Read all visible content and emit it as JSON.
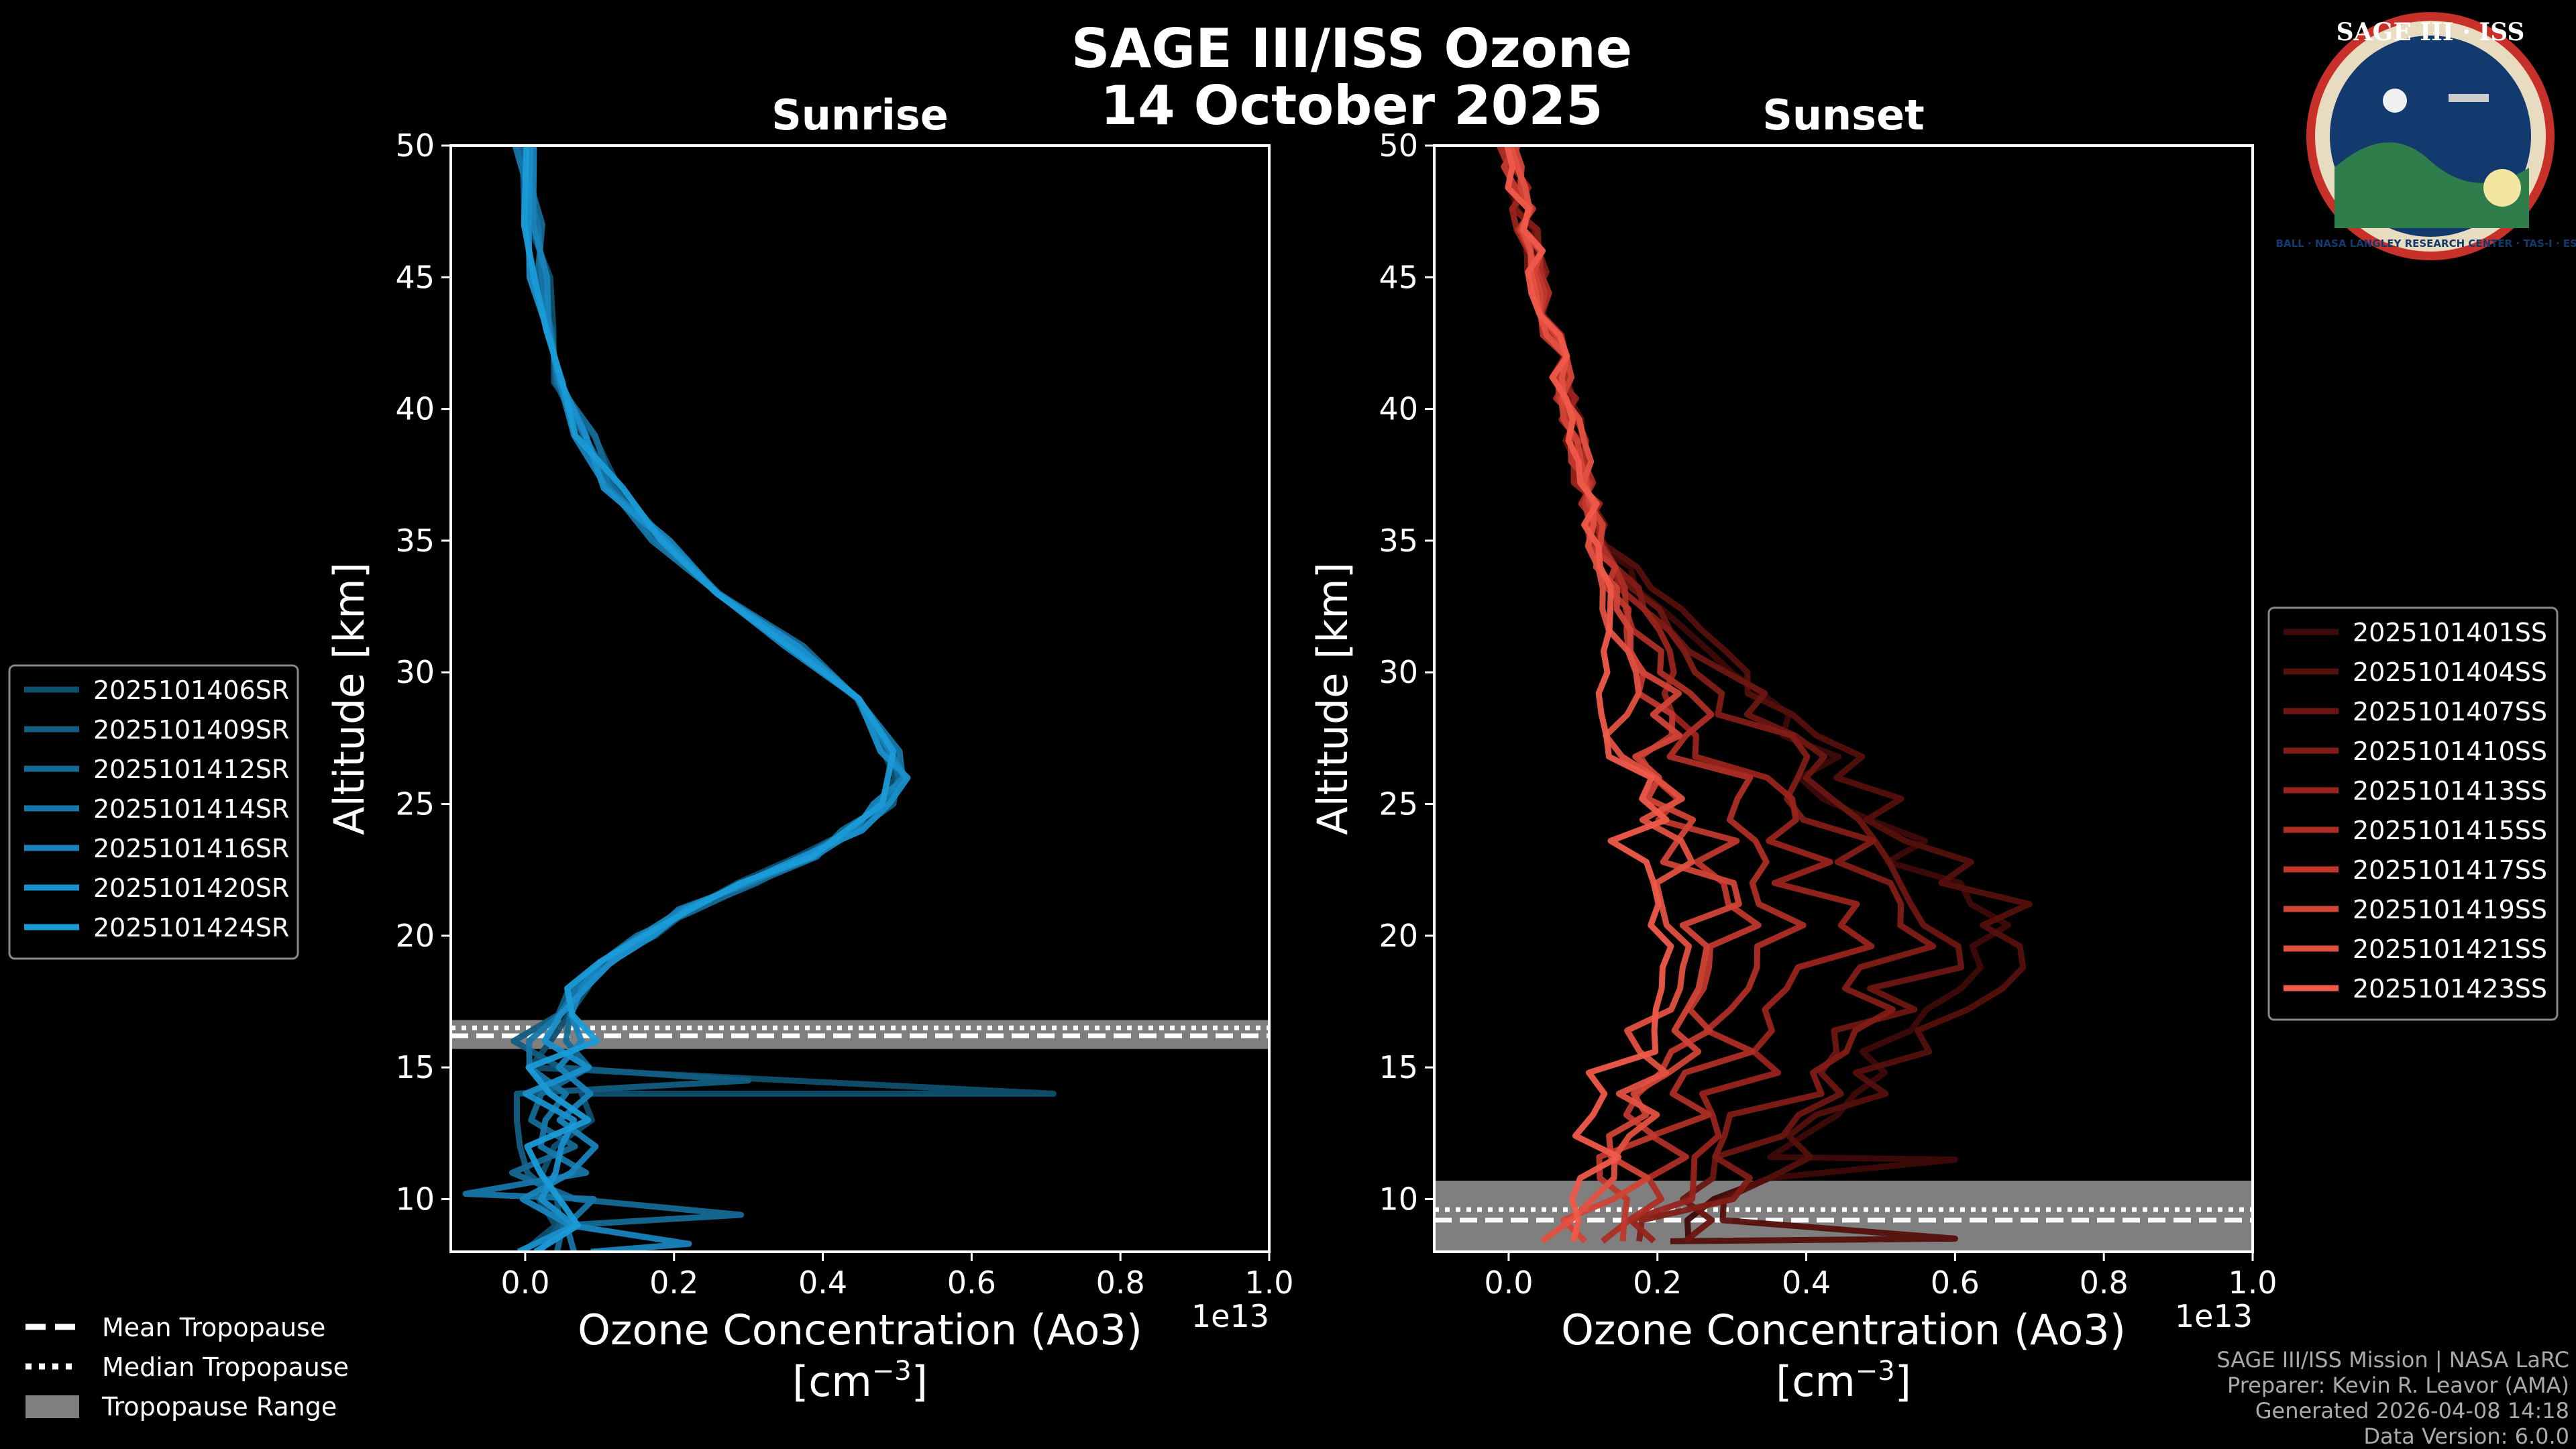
{
  "title_line1": "SAGE III/ISS Ozone",
  "title_line2": "14 October 2025",
  "logo": {
    "text": "SAGE III · ISS",
    "ring_text": "BALL · NASA LANGLEY RESEARCH CENTER · TAS-I · ESA"
  },
  "colors": {
    "sunrise": "#1a9bd7",
    "sunset": "#f05a4a",
    "grid_bg": "#000000",
    "tropo_band": "#7f7f7f"
  },
  "chart_data": [
    {
      "type": "line",
      "title": "Sunrise",
      "xlabel": "Ozone Concentration (Ao3)",
      "xlabel_unit": "[cm",
      "xlabel_unit_exp": "−3",
      "xlabel_unit_close": "]",
      "ylabel": "Altitude [km]",
      "offset_label": "1e13",
      "xlim": [
        -0.1,
        1.0
      ],
      "ylim": [
        8,
        50
      ],
      "xticks": [
        "0.0",
        "0.2",
        "0.4",
        "0.6",
        "0.8",
        "1.0"
      ],
      "yticks": [
        "10",
        "15",
        "20",
        "25",
        "30",
        "35",
        "40",
        "45",
        "50"
      ],
      "tropopause": {
        "mean": 16.2,
        "median": 16.5,
        "min": 15.7,
        "max": 16.8
      },
      "series": [
        {
          "name": "2025101406SR",
          "color": "#0f4f6e",
          "seed": 1
        },
        {
          "name": "2025101409SR",
          "color": "#125d82",
          "seed": 2
        },
        {
          "name": "2025101412SR",
          "color": "#146a96",
          "seed": 3
        },
        {
          "name": "2025101414SR",
          "color": "#1676a8",
          "seed": 4
        },
        {
          "name": "2025101416SR",
          "color": "#1883ba",
          "seed": 5
        },
        {
          "name": "2025101420SR",
          "color": "#198fcb",
          "seed": 6
        },
        {
          "name": "2025101424SR",
          "color": "#1a9bd7",
          "seed": 7
        }
      ],
      "profile": [
        [
          50,
          0.0
        ],
        [
          47,
          0.01
        ],
        [
          45,
          0.02
        ],
        [
          43,
          0.03
        ],
        [
          41,
          0.05
        ],
        [
          39,
          0.08
        ],
        [
          37,
          0.12
        ],
        [
          35,
          0.18
        ],
        [
          33,
          0.26
        ],
        [
          31,
          0.36
        ],
        [
          29,
          0.44
        ],
        [
          27,
          0.49
        ],
        [
          26,
          0.5
        ],
        [
          25,
          0.48
        ],
        [
          24,
          0.44
        ],
        [
          23,
          0.38
        ],
        [
          22,
          0.3
        ],
        [
          21,
          0.22
        ],
        [
          20,
          0.16
        ],
        [
          19,
          0.11
        ],
        [
          18,
          0.07
        ],
        [
          17,
          0.05
        ],
        [
          16,
          0.04
        ],
        [
          15,
          0.05
        ],
        [
          14,
          0.04
        ],
        [
          13,
          0.03
        ],
        [
          12,
          0.04
        ],
        [
          11,
          0.03
        ],
        [
          10,
          0.04
        ],
        [
          9,
          0.05
        ],
        [
          8,
          0.04
        ]
      ],
      "spikes": [
        [
          14.0,
          0.71
        ],
        [
          14.5,
          0.3
        ],
        [
          9.4,
          0.29
        ],
        [
          10.2,
          -0.08
        ],
        [
          8.3,
          0.22
        ]
      ]
    },
    {
      "type": "line",
      "title": "Sunset",
      "xlabel": "Ozone Concentration (Ao3)",
      "xlabel_unit": "[cm",
      "xlabel_unit_exp": "−3",
      "xlabel_unit_close": "]",
      "ylabel": "Altitude [km]",
      "offset_label": "1e13",
      "xlim": [
        -0.1,
        1.0
      ],
      "ylim": [
        8,
        50
      ],
      "xticks": [
        "0.0",
        "0.2",
        "0.4",
        "0.6",
        "0.8",
        "1.0"
      ],
      "yticks": [
        "10",
        "15",
        "20",
        "25",
        "30",
        "35",
        "40",
        "45",
        "50"
      ],
      "tropopause": {
        "mean": 9.2,
        "median": 9.6,
        "min": 8.0,
        "max": 10.7
      },
      "series": [
        {
          "name": "2025101401SS",
          "color": "#3d0a08",
          "peak": 0.65,
          "seed": 11
        },
        {
          "name": "2025101404SS",
          "color": "#54100c",
          "peak": 0.7,
          "seed": 12
        },
        {
          "name": "2025101407SS",
          "color": "#6b1611",
          "peak": 0.6,
          "seed": 13
        },
        {
          "name": "2025101410SS",
          "color": "#821c16",
          "peak": 0.55,
          "seed": 14
        },
        {
          "name": "2025101413SS",
          "color": "#98241c",
          "peak": 0.45,
          "seed": 15
        },
        {
          "name": "2025101415SS",
          "color": "#ad2e24",
          "peak": 0.38,
          "seed": 16
        },
        {
          "name": "2025101417SS",
          "color": "#c0382d",
          "peak": 0.3,
          "seed": 17
        },
        {
          "name": "2025101419SS",
          "color": "#d14537",
          "peak": 0.28,
          "seed": 18
        },
        {
          "name": "2025101421SS",
          "color": "#e15141",
          "peak": 0.24,
          "seed": 19
        },
        {
          "name": "2025101423SS",
          "color": "#f05a4a",
          "peak": 0.2,
          "seed": 20
        }
      ],
      "spikes": [
        [
          11.5,
          0.6
        ],
        [
          8.5,
          0.6
        ]
      ]
    }
  ],
  "tropo_legend": {
    "mean": "Mean Tropopause",
    "median": "Median Tropopause",
    "range": "Tropopause Range"
  },
  "footer": {
    "line1": "SAGE III/ISS Mission | NASA LaRC",
    "line2": "Preparer: Kevin R. Leavor (AMA)",
    "line3": "Generated 2026-04-08 14:18",
    "line4": "Data Version: 6.0.0"
  }
}
